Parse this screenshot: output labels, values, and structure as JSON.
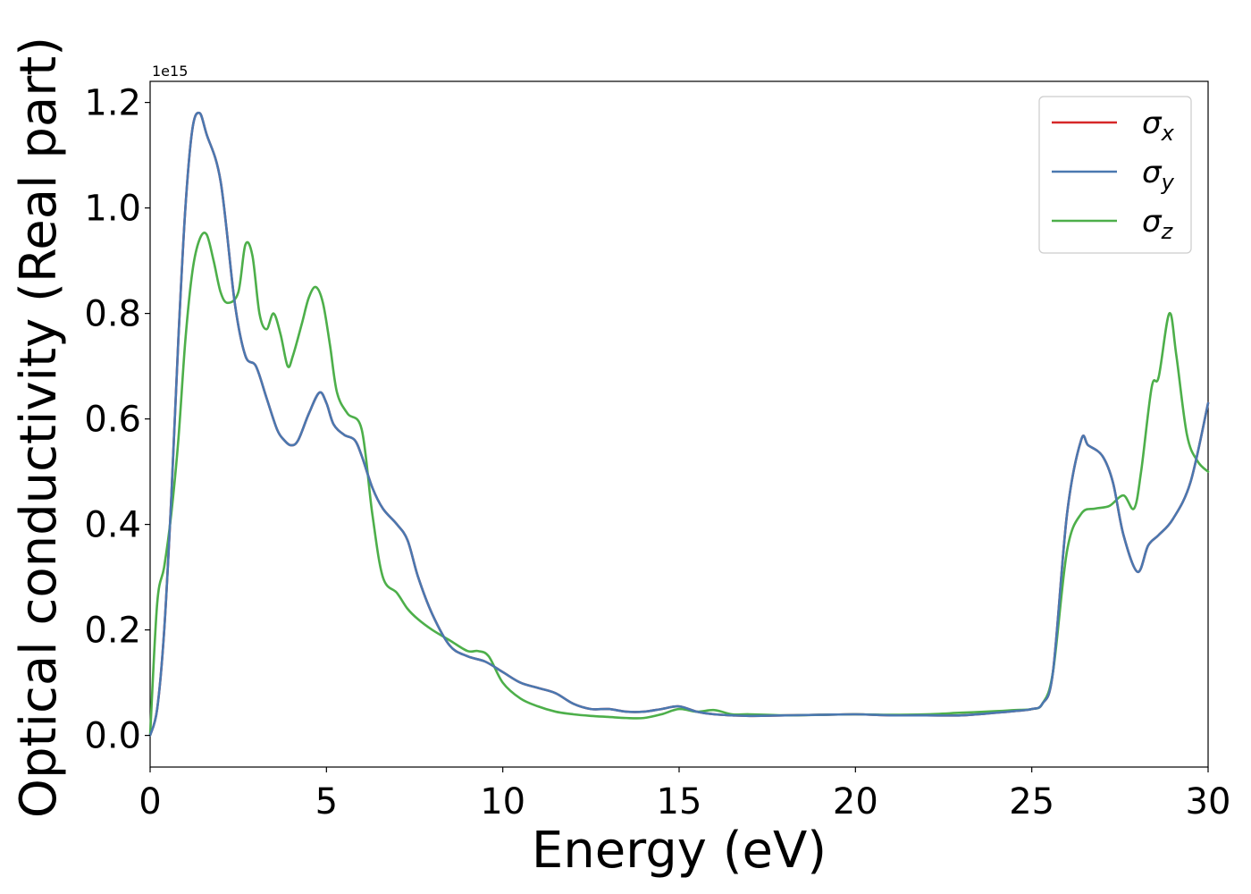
{
  "chart_data": {
    "type": "line",
    "xlabel": "Energy (eV)",
    "ylabel": "Optical conductivity (Real part)",
    "y_offset_text": "1e15",
    "y_scale_factor": 1000000000000000.0,
    "xlim": [
      0,
      30
    ],
    "ylim": [
      -0.06,
      1.24
    ],
    "xticks": [
      0,
      5,
      10,
      15,
      20,
      25,
      30
    ],
    "xtick_labels": [
      "0",
      "5",
      "10",
      "15",
      "20",
      "25",
      "30"
    ],
    "yticks": [
      0.0,
      0.2,
      0.4,
      0.6,
      0.8,
      1.0,
      1.2
    ],
    "ytick_labels": [
      "0.0",
      "0.2",
      "0.4",
      "0.6",
      "0.8",
      "1.0",
      "1.2"
    ],
    "grid": false,
    "legend_position": "top-right",
    "series": [
      {
        "name": "σx",
        "symbol": "σ",
        "subscript": "x",
        "color": "#d62728",
        "x": [
          0,
          0.2,
          0.4,
          0.6,
          0.8,
          1.0,
          1.2,
          1.4,
          1.6,
          2.0,
          2.4,
          2.7,
          3.0,
          3.3,
          3.6,
          3.8,
          4.0,
          4.2,
          4.5,
          4.8,
          5.0,
          5.2,
          5.5,
          5.8,
          6.0,
          6.3,
          6.6,
          7.0,
          7.3,
          7.6,
          8.0,
          8.5,
          9.0,
          9.5,
          10.0,
          10.5,
          11.0,
          11.5,
          12.0,
          12.5,
          13.0,
          13.5,
          14.0,
          14.5,
          15.0,
          15.5,
          16.0,
          16.5,
          17.0,
          18.0,
          19.0,
          20.0,
          21.0,
          22.0,
          23.0,
          24.0,
          24.5,
          25.0,
          25.3,
          25.6,
          26.0,
          26.4,
          26.6,
          27.0,
          27.3,
          27.6,
          28.0,
          28.3,
          28.6,
          29.0,
          29.5,
          30.0
        ],
        "y": [
          0.0,
          0.05,
          0.2,
          0.45,
          0.75,
          1.0,
          1.15,
          1.18,
          1.14,
          1.05,
          0.82,
          0.72,
          0.7,
          0.64,
          0.58,
          0.56,
          0.55,
          0.56,
          0.61,
          0.65,
          0.63,
          0.59,
          0.57,
          0.56,
          0.53,
          0.47,
          0.43,
          0.4,
          0.37,
          0.3,
          0.23,
          0.17,
          0.15,
          0.14,
          0.12,
          0.1,
          0.09,
          0.08,
          0.06,
          0.05,
          0.05,
          0.045,
          0.045,
          0.05,
          0.055,
          0.045,
          0.04,
          0.038,
          0.037,
          0.038,
          0.039,
          0.04,
          0.038,
          0.038,
          0.038,
          0.043,
          0.046,
          0.05,
          0.06,
          0.12,
          0.42,
          0.56,
          0.55,
          0.53,
          0.48,
          0.38,
          0.31,
          0.36,
          0.38,
          0.41,
          0.48,
          0.63
        ]
      },
      {
        "name": "σy",
        "symbol": "σ",
        "subscript": "y",
        "color": "#4a78b0",
        "x": [
          0,
          0.2,
          0.4,
          0.6,
          0.8,
          1.0,
          1.2,
          1.4,
          1.6,
          2.0,
          2.4,
          2.7,
          3.0,
          3.3,
          3.6,
          3.8,
          4.0,
          4.2,
          4.5,
          4.8,
          5.0,
          5.2,
          5.5,
          5.8,
          6.0,
          6.3,
          6.6,
          7.0,
          7.3,
          7.6,
          8.0,
          8.5,
          9.0,
          9.5,
          10.0,
          10.5,
          11.0,
          11.5,
          12.0,
          12.5,
          13.0,
          13.5,
          14.0,
          14.5,
          15.0,
          15.5,
          16.0,
          16.5,
          17.0,
          18.0,
          19.0,
          20.0,
          21.0,
          22.0,
          23.0,
          24.0,
          24.5,
          25.0,
          25.3,
          25.6,
          26.0,
          26.4,
          26.6,
          27.0,
          27.3,
          27.6,
          28.0,
          28.3,
          28.6,
          29.0,
          29.5,
          30.0
        ],
        "y": [
          0.0,
          0.05,
          0.2,
          0.45,
          0.75,
          1.0,
          1.15,
          1.18,
          1.14,
          1.05,
          0.82,
          0.72,
          0.7,
          0.64,
          0.58,
          0.56,
          0.55,
          0.56,
          0.61,
          0.65,
          0.63,
          0.59,
          0.57,
          0.56,
          0.53,
          0.47,
          0.43,
          0.4,
          0.37,
          0.3,
          0.23,
          0.17,
          0.15,
          0.14,
          0.12,
          0.1,
          0.09,
          0.08,
          0.06,
          0.05,
          0.05,
          0.045,
          0.045,
          0.05,
          0.055,
          0.045,
          0.04,
          0.038,
          0.037,
          0.038,
          0.039,
          0.04,
          0.038,
          0.038,
          0.038,
          0.043,
          0.046,
          0.05,
          0.06,
          0.12,
          0.42,
          0.56,
          0.55,
          0.53,
          0.48,
          0.38,
          0.31,
          0.36,
          0.38,
          0.41,
          0.48,
          0.63
        ]
      },
      {
        "name": "σz",
        "symbol": "σ",
        "subscript": "z",
        "color": "#4daf4a",
        "x": [
          0,
          0.2,
          0.4,
          0.6,
          0.8,
          1.0,
          1.2,
          1.4,
          1.6,
          1.8,
          2.0,
          2.2,
          2.5,
          2.7,
          2.9,
          3.1,
          3.3,
          3.5,
          3.7,
          3.9,
          4.05,
          4.3,
          4.5,
          4.7,
          4.9,
          5.1,
          5.3,
          5.6,
          6.0,
          6.3,
          6.6,
          7.0,
          7.3,
          7.6,
          8.0,
          8.5,
          9.0,
          9.3,
          9.6,
          10.0,
          10.5,
          11.0,
          11.5,
          12.0,
          12.5,
          13.0,
          13.5,
          14.0,
          14.5,
          15.0,
          15.5,
          16.0,
          16.5,
          17.0,
          18.0,
          19.0,
          20.0,
          21.0,
          22.0,
          23.0,
          24.0,
          24.5,
          25.0,
          25.3,
          25.6,
          26.0,
          26.4,
          26.8,
          27.2,
          27.6,
          27.9,
          28.1,
          28.4,
          28.6,
          28.9,
          29.1,
          29.4,
          29.7,
          30.0
        ],
        "y": [
          0.0,
          0.25,
          0.32,
          0.42,
          0.56,
          0.75,
          0.88,
          0.94,
          0.95,
          0.9,
          0.84,
          0.82,
          0.84,
          0.93,
          0.91,
          0.8,
          0.77,
          0.8,
          0.76,
          0.7,
          0.72,
          0.78,
          0.83,
          0.85,
          0.82,
          0.74,
          0.65,
          0.61,
          0.58,
          0.42,
          0.3,
          0.27,
          0.24,
          0.22,
          0.2,
          0.18,
          0.16,
          0.16,
          0.15,
          0.1,
          0.07,
          0.055,
          0.045,
          0.04,
          0.037,
          0.035,
          0.033,
          0.033,
          0.04,
          0.05,
          0.045,
          0.048,
          0.04,
          0.04,
          0.038,
          0.039,
          0.04,
          0.039,
          0.04,
          0.043,
          0.046,
          0.048,
          0.05,
          0.06,
          0.12,
          0.35,
          0.42,
          0.43,
          0.435,
          0.455,
          0.43,
          0.5,
          0.66,
          0.68,
          0.8,
          0.72,
          0.57,
          0.52,
          0.5
        ]
      }
    ]
  }
}
